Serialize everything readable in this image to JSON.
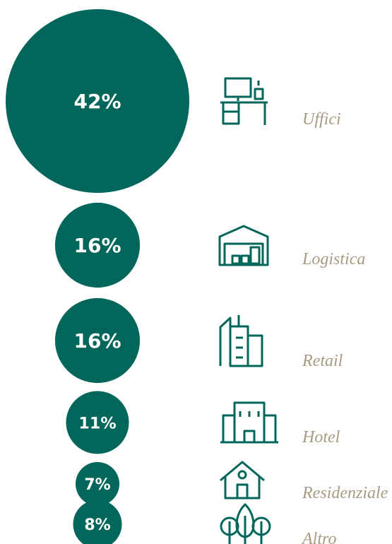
{
  "chart_data": {
    "type": "bubble",
    "categories": [
      "Uffici",
      "Logistica",
      "Retail",
      "Hotel",
      "Residenziale",
      "Altro"
    ],
    "values": [
      42,
      16,
      16,
      11,
      7,
      8
    ],
    "value_labels": [
      "42%",
      "16%",
      "16%",
      "11%",
      "7%",
      "8%"
    ],
    "color": "#02665a"
  }
}
